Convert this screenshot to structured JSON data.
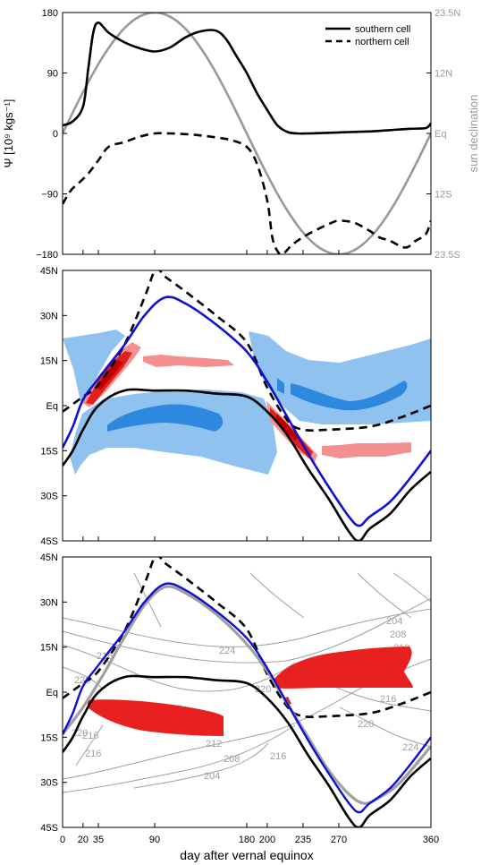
{
  "colors": {
    "southern": "#000000",
    "northern": "#000000",
    "sun": "#999999",
    "blue_line": "#1010d0",
    "light_blue": "#90c2f0",
    "mid_blue": "#2f88e0",
    "light_red": "#f59090",
    "red": "#e02020",
    "dark_red": "#c00000",
    "contour": "#a0a0a0"
  },
  "xlabel": "day after vernal equinox",
  "x_ticks": [
    "0",
    "20",
    "35",
    "90",
    "180",
    "200",
    "235",
    "270",
    "360"
  ],
  "x_tick_values": [
    0,
    20,
    35,
    90,
    180,
    200,
    235,
    270,
    360
  ],
  "chart_data": [
    {
      "type": "line",
      "ylabel": "Ψ [10⁹ kgs⁻¹]",
      "ylabel_right": "sun declination",
      "ylim": [
        -180,
        180
      ],
      "y_ticks": [
        "180",
        "90",
        "0",
        "−90",
        "−180"
      ],
      "y_tick_values": [
        180,
        90,
        0,
        -90,
        -180
      ],
      "y_right_ticks": [
        "23.5N",
        "12N",
        "Eq",
        "12S",
        "23.5S"
      ],
      "legend": {
        "position": "top-right",
        "entries": [
          "southern cell",
          "northern cell"
        ]
      },
      "series": [
        {
          "name": "southern cell",
          "style": "solid",
          "x": [
            0,
            10,
            20,
            25,
            30,
            35,
            45,
            60,
            75,
            90,
            105,
            120,
            135,
            150,
            160,
            170,
            180,
            190,
            200,
            210,
            220,
            230,
            240,
            260,
            280,
            300,
            320,
            340,
            355,
            360
          ],
          "y": [
            12,
            18,
            40,
            95,
            150,
            165,
            150,
            136,
            127,
            122,
            128,
            143,
            152,
            153,
            140,
            115,
            90,
            60,
            35,
            12,
            2,
            0,
            0,
            1,
            2,
            3,
            5,
            7,
            8,
            15
          ]
        },
        {
          "name": "northern cell",
          "style": "dashed",
          "x": [
            0,
            8,
            15,
            25,
            35,
            45,
            60,
            75,
            90,
            105,
            120,
            135,
            150,
            165,
            180,
            190,
            200,
            205,
            210,
            215,
            225,
            240,
            260,
            270,
            285,
            300,
            310,
            320,
            335,
            345,
            355,
            360
          ],
          "y": [
            -105,
            -85,
            -75,
            -60,
            -40,
            -20,
            -13,
            -5,
            0,
            0,
            -1,
            -3,
            -6,
            -10,
            -20,
            -45,
            -100,
            -155,
            -175,
            -180,
            -165,
            -150,
            -135,
            -130,
            -133,
            -145,
            -155,
            -160,
            -170,
            -160,
            -150,
            -130
          ]
        },
        {
          "name": "sun declination",
          "style": "solid",
          "axis": "right",
          "x": [
            0,
            90,
            180,
            270,
            360
          ],
          "y": [
            0,
            23.5,
            0,
            -23.5,
            0
          ]
        }
      ]
    },
    {
      "type": "area",
      "ylim": [
        -45,
        45
      ],
      "y_ticks": [
        "45N",
        "30N",
        "15N",
        "Eq",
        "15S",
        "30S",
        "45S"
      ],
      "y_tick_values": [
        45,
        30,
        15,
        0,
        -15,
        -30,
        -45
      ],
      "series": [
        {
          "style": "dashed",
          "x": [
            0,
            20,
            35,
            60,
            80,
            90,
            95,
            100,
            120,
            150,
            180,
            200,
            220,
            235,
            260,
            300,
            330,
            360
          ],
          "y": [
            -2,
            3,
            7,
            20,
            36,
            45,
            45,
            43,
            38,
            30,
            21,
            6,
            -5,
            -8,
            -8,
            -7,
            -4,
            0
          ]
        },
        {
          "style": "solid",
          "color": "blue",
          "x": [
            0,
            10,
            20,
            35,
            60,
            80,
            100,
            120,
            150,
            180,
            200,
            220,
            240,
            260,
            280,
            290,
            300,
            320,
            340,
            360
          ],
          "y": [
            -14,
            -7,
            2,
            9,
            20,
            30,
            36,
            34,
            27,
            18,
            8,
            -4,
            -16,
            -27,
            -37,
            -40,
            -37,
            -32,
            -24,
            -15
          ]
        },
        {
          "style": "solid",
          "x": [
            0,
            10,
            20,
            35,
            60,
            90,
            120,
            150,
            180,
            200,
            220,
            240,
            260,
            280,
            290,
            300,
            320,
            340,
            360
          ],
          "y": [
            -20,
            -15,
            -8,
            0,
            5,
            5,
            5,
            4,
            3,
            -2,
            -10,
            -21,
            -31,
            -42,
            -45,
            -41,
            -36,
            -28,
            -22
          ]
        }
      ]
    },
    {
      "type": "line",
      "ylim": [
        -45,
        45
      ],
      "y_ticks": [
        "45N",
        "30N",
        "15N",
        "Eq",
        "15S",
        "30S",
        "45S"
      ],
      "y_tick_values": [
        45,
        30,
        15,
        0,
        -15,
        -30,
        -45
      ],
      "contour_labels": [
        "204",
        "208",
        "212",
        "216",
        "224",
        "220",
        "216",
        "220",
        "216",
        "212",
        "208",
        "204",
        "216",
        "224",
        "220",
        "220",
        "216"
      ],
      "series": [
        {
          "style": "dashed",
          "x": [
            0,
            20,
            35,
            60,
            80,
            90,
            95,
            100,
            120,
            150,
            180,
            200,
            220,
            235,
            260,
            300,
            330,
            360
          ],
          "y": [
            -2,
            3,
            7,
            20,
            36,
            45,
            45,
            43,
            38,
            30,
            21,
            6,
            -5,
            -8,
            -8,
            -7,
            -4,
            0
          ]
        },
        {
          "style": "solid",
          "color": "blue",
          "x": [
            0,
            10,
            20,
            35,
            60,
            80,
            100,
            120,
            150,
            180,
            200,
            220,
            240,
            260,
            280,
            290,
            300,
            320,
            340,
            360
          ],
          "y": [
            -14,
            -7,
            2,
            9,
            20,
            30,
            36,
            34,
            27,
            18,
            8,
            -4,
            -16,
            -27,
            -37,
            -40,
            -37,
            -32,
            -24,
            -15
          ]
        },
        {
          "style": "solid",
          "color": "gray",
          "x": [
            0,
            20,
            40,
            60,
            80,
            100,
            120,
            150,
            180,
            200,
            220,
            240,
            260,
            280,
            295,
            310,
            330,
            360
          ],
          "y": [
            -14,
            -5,
            6,
            18,
            29,
            35,
            33,
            26,
            16,
            7,
            -4,
            -15,
            -26,
            -34,
            -37,
            -35,
            -30,
            -18
          ]
        },
        {
          "style": "solid",
          "x": [
            0,
            10,
            20,
            35,
            60,
            90,
            120,
            150,
            180,
            200,
            220,
            240,
            260,
            280,
            290,
            300,
            320,
            340,
            360
          ],
          "y": [
            -20,
            -15,
            -8,
            0,
            5,
            5,
            5,
            4,
            3,
            -2,
            -10,
            -21,
            -31,
            -42,
            -45,
            -41,
            -36,
            -28,
            -22
          ]
        }
      ]
    }
  ]
}
